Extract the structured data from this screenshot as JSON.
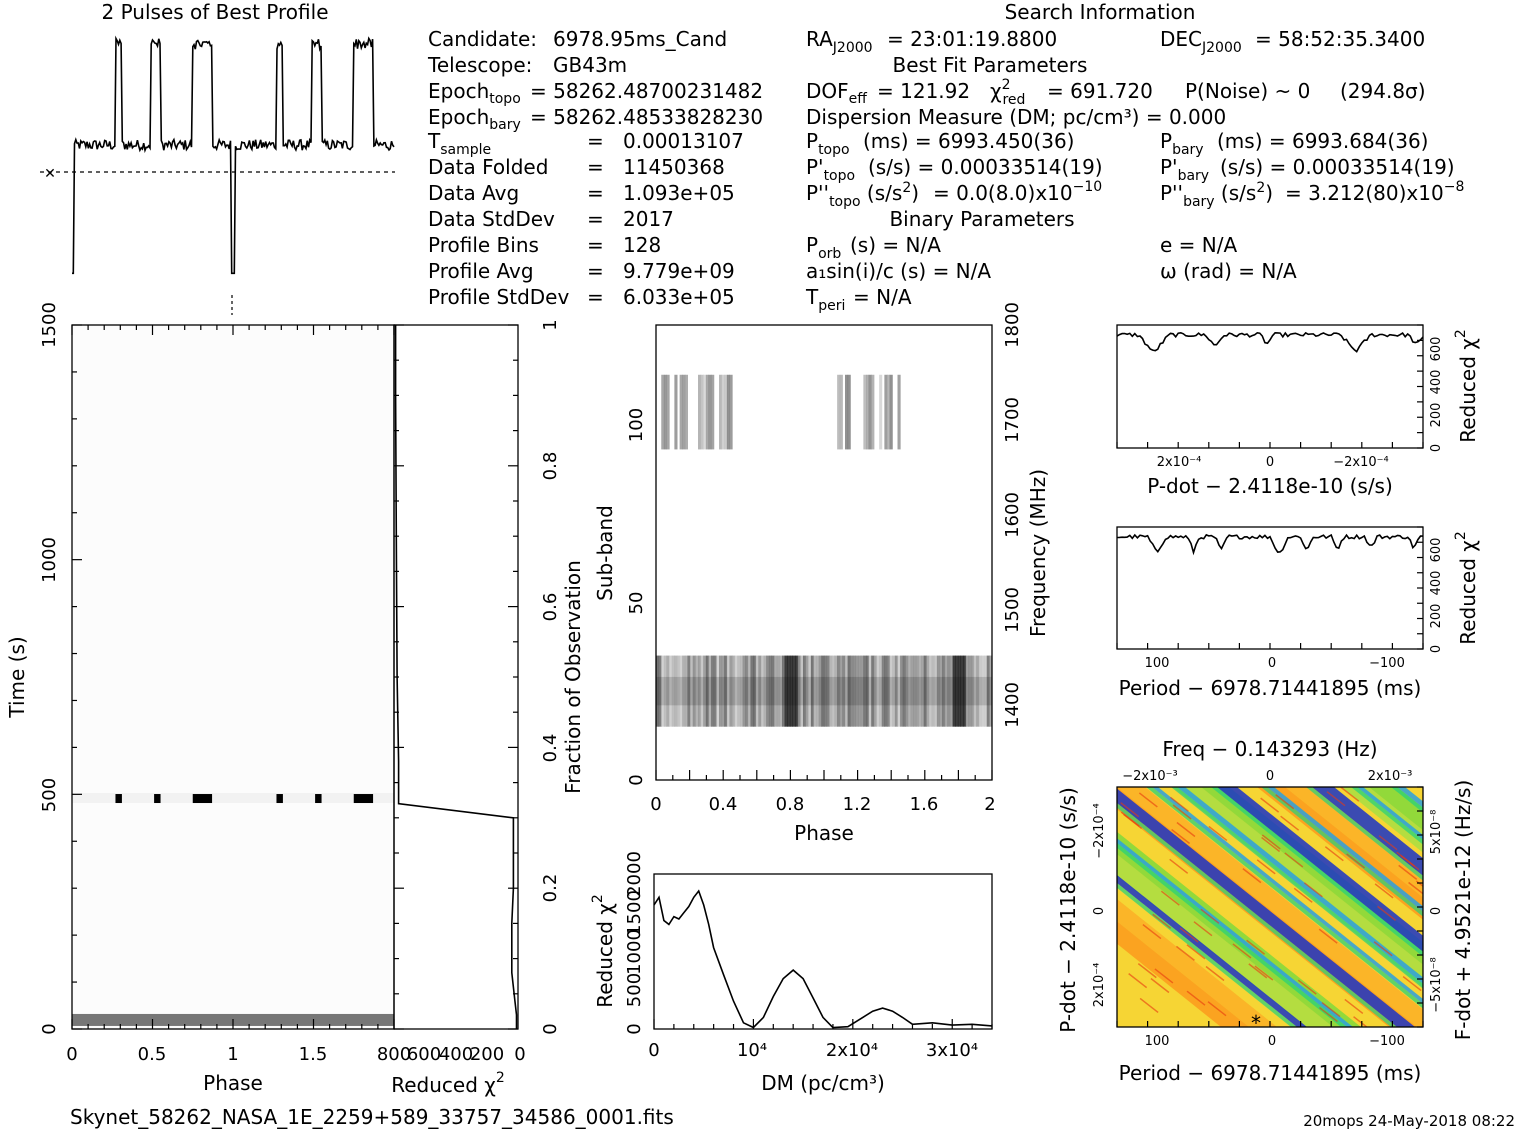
{
  "title": "2 Pulses of Best Profile",
  "search_title": "Search Information",
  "filename": "Skynet_58262_NASA_1E_2259+589_33757_34586_0001.fits",
  "footer_right": "20mops 24-May-2018 08:22",
  "info_left": [
    {
      "label": "Candidate:",
      "value": "6978.95ms_Cand"
    },
    {
      "label": "Telescope:",
      "value": "GB43m"
    },
    {
      "label": "Epoch_topo",
      "value": "= 58262.48700231482"
    },
    {
      "label": "Epoch_bary",
      "value": "= 58262.48533828230"
    },
    {
      "label": "T_sample",
      "value": "0.00013107"
    },
    {
      "label": "Data Folded",
      "value": "11450368"
    },
    {
      "label": "Data Avg",
      "value": "1.093e+05"
    },
    {
      "label": "Data StdDev",
      "value": "2017"
    },
    {
      "label": "Profile Bins",
      "value": "128"
    },
    {
      "label": "Profile Avg",
      "value": "9.779e+09"
    },
    {
      "label": "Profile StdDev",
      "value": "6.033e+05"
    }
  ],
  "info_mid": {
    "ra": "= 23:01:19.8800",
    "best_fit_title": "Best Fit Parameters",
    "dof": "= 121.92",
    "chi2": "= 691.720",
    "pnoise": "P(Noise) ~ 0",
    "sigma": "(294.8σ)",
    "dm_line": "Dispersion Measure (DM; pc/cm³) = 0.000",
    "p_topo": "(ms) =  6993.450(36)",
    "pd_topo": "(s/s) =  0.00033514(19)",
    "pdd_topo": "= 0.0(8.0)x10",
    "pdd_topo_exp": "−10",
    "binary_title": "Binary Parameters",
    "porb": "(s) = N/A",
    "a1": "a₁sin(i)/c (s) = N/A",
    "tperi": "= N/A"
  },
  "info_right": {
    "dec": "= 58:52:35.3400",
    "p_bary": "(ms) =  6993.684(36)",
    "pd_bary": "(s/s) =  0.00033514(19)",
    "pdd_bary": "=  3.212(80)x10",
    "pdd_bary_exp": "−8",
    "e": "e = N/A",
    "omega": "ω (rad) = N/A"
  },
  "chart_data": [
    {
      "type": "line",
      "panel": "profile",
      "title": "2 Pulses of Best Profile",
      "x_range": [
        0,
        2
      ],
      "pulses": [
        {
          "start": 0.27,
          "end": 0.31
        },
        {
          "start": 0.49,
          "end": 0.55
        },
        {
          "start": 0.75,
          "end": 0.87
        },
        {
          "start": 1.27,
          "end": 1.31
        },
        {
          "start": 1.49,
          "end": 1.55
        },
        {
          "start": 1.75,
          "end": 1.87
        }
      ],
      "baseline_level": 0.2,
      "pulse_level": 0.95,
      "dip": {
        "x": 1.0,
        "level": -0.75
      }
    },
    {
      "type": "heatmap",
      "panel": "time-phase",
      "xlabel": "Phase",
      "ylabel": "Time (s)",
      "xlim": [
        0,
        2
      ],
      "ylim": [
        0,
        1500
      ],
      "xticks": [
        "0",
        "0.5",
        "1",
        "1.5"
      ],
      "yticks": [
        "0",
        "500",
        "1000",
        "1500"
      ],
      "bright_row_time": 490,
      "bright_segments": [
        [
          0.27,
          0.31
        ],
        [
          0.51,
          0.55
        ],
        [
          0.75,
          0.87
        ],
        [
          1.27,
          1.31
        ],
        [
          1.51,
          1.55
        ],
        [
          1.75,
          1.87
        ]
      ],
      "low_row_time": 15
    },
    {
      "type": "line",
      "panel": "time-chi2",
      "xlabel": "Reduced χ²",
      "ylabel": "Fraction of Observation",
      "xlim": [
        800,
        0
      ],
      "ylim": [
        0,
        1
      ],
      "xticks": [
        "800",
        "600",
        "400",
        "200",
        "0"
      ],
      "yticks": [
        "0",
        "0.2",
        "0.4",
        "0.6",
        "0.8",
        "1"
      ],
      "points": [
        [
          10,
          0.0
        ],
        [
          10,
          0.02
        ],
        [
          20,
          0.04
        ],
        [
          40,
          0.08
        ],
        [
          40,
          0.15
        ],
        [
          30,
          0.2
        ],
        [
          30,
          0.3
        ],
        [
          770,
          0.32
        ],
        [
          770,
          0.38
        ],
        [
          780,
          0.5
        ],
        [
          785,
          0.7
        ],
        [
          790,
          0.9
        ],
        [
          790,
          1.0
        ]
      ]
    },
    {
      "type": "heatmap",
      "panel": "subband",
      "xlabel": "Phase",
      "ylabel": "Sub-band",
      "right_label": "Frequency (MHz)",
      "xlim": [
        0,
        2
      ],
      "ylim": [
        0,
        128
      ],
      "xticks": [
        "0",
        "0.4",
        "0.8",
        "1.2",
        "1.6",
        "2"
      ],
      "yticks": [
        "0",
        "50",
        "100"
      ],
      "right_ticks": [
        "1400",
        "1500",
        "1600",
        "1700",
        "1800"
      ],
      "low_band": [
        15,
        35
      ],
      "high_band": [
        93,
        114
      ]
    },
    {
      "type": "line",
      "panel": "dm",
      "xlabel": "DM (pc/cm³)",
      "ylabel": "Reduced χ²",
      "xlim": [
        0,
        34000
      ],
      "ylim": [
        0,
        2000
      ],
      "xticks": [
        "0",
        "10⁴",
        "2x10⁴",
        "3x10⁴"
      ],
      "yticks": [
        "0",
        "500",
        "1000",
        "1500",
        "2000"
      ],
      "points": [
        [
          0,
          1600
        ],
        [
          500,
          1700
        ],
        [
          1000,
          1400
        ],
        [
          1500,
          1350
        ],
        [
          2000,
          1450
        ],
        [
          2500,
          1420
        ],
        [
          3000,
          1500
        ],
        [
          3500,
          1580
        ],
        [
          4000,
          1700
        ],
        [
          4500,
          1780
        ],
        [
          5000,
          1600
        ],
        [
          5500,
          1350
        ],
        [
          6000,
          1050
        ],
        [
          7000,
          700
        ],
        [
          8000,
          360
        ],
        [
          9000,
          80
        ],
        [
          10000,
          20
        ],
        [
          11000,
          150
        ],
        [
          12000,
          420
        ],
        [
          13000,
          650
        ],
        [
          14000,
          760
        ],
        [
          15000,
          650
        ],
        [
          16000,
          400
        ],
        [
          17000,
          150
        ],
        [
          18000,
          20
        ],
        [
          19500,
          30
        ],
        [
          21000,
          150
        ],
        [
          22000,
          230
        ],
        [
          23000,
          270
        ],
        [
          24000,
          230
        ],
        [
          25000,
          150
        ],
        [
          26000,
          60
        ],
        [
          28000,
          80
        ],
        [
          30000,
          50
        ],
        [
          32000,
          60
        ],
        [
          34000,
          40
        ]
      ]
    },
    {
      "type": "line",
      "panel": "pdot-chi2",
      "xlabel": "P-dot − 2.4118e-10 (s/s)",
      "ylabel": "Reduced χ²",
      "xticks": [
        "2x10⁻⁴",
        "0",
        "−2x10⁻⁴"
      ],
      "yticks": [
        "0",
        "200",
        "400",
        "600"
      ],
      "ylim": [
        0,
        750
      ]
    },
    {
      "type": "line",
      "panel": "period-chi2",
      "xlabel": "Period − 6978.71441895 (ms)",
      "ylabel": "Reduced χ²",
      "xticks": [
        "100",
        "0",
        "−100"
      ],
      "yticks": [
        "0",
        "200",
        "400",
        "600"
      ],
      "ylim": [
        0,
        750
      ]
    },
    {
      "type": "heatmap",
      "panel": "ppdot",
      "title": "Freq − 0.143293 (Hz)",
      "xlabel": "Period − 6978.71441895 (ms)",
      "ylabel": "P-dot − 2.4118e-10 (s/s)",
      "right_label": "F-dot + 4.9521e-12 (Hz/s)",
      "top_ticks": [
        "−2x10⁻³",
        "0",
        "2x10⁻³"
      ],
      "bottom_ticks": [
        "100",
        "0",
        "−100"
      ],
      "left_ticks": [
        "−2x10⁻⁴",
        "0",
        "2x10⁻⁴"
      ],
      "right_ticks": [
        "5x10⁻⁸",
        "0",
        "−5x10⁻⁸"
      ]
    }
  ]
}
